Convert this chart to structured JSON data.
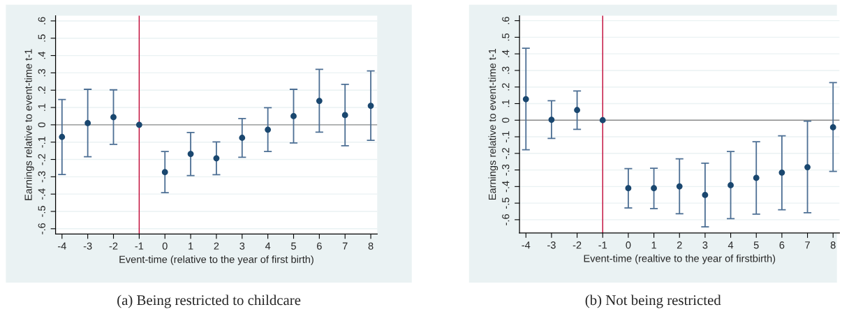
{
  "chart_data": [
    {
      "type": "scatter",
      "xlabel": "Event-time (relative to the year of first birth)",
      "ylabel": "Earnings relative to event-time t-1",
      "annotations": [
        "(a) Being restricted to childcare"
      ],
      "x": [
        -4,
        -3,
        -2,
        -1,
        0,
        1,
        2,
        3,
        4,
        5,
        6,
        7,
        8
      ],
      "series": [
        {
          "color": "#1a476f",
          "values": [
            -0.07,
            0.01,
            0.044,
            0,
            -0.273,
            -0.168,
            -0.193,
            -0.075,
            -0.028,
            0.05,
            0.138,
            0.056,
            0.11
          ],
          "errors": [
            [
              -0.287,
              0.146
            ],
            [
              -0.184,
              0.205
            ],
            [
              -0.113,
              0.202
            ],
            null,
            [
              -0.392,
              -0.154
            ],
            [
              -0.293,
              -0.044
            ],
            [
              -0.288,
              -0.099
            ],
            [
              -0.187,
              0.036
            ],
            [
              -0.154,
              0.099
            ],
            [
              -0.105,
              0.205
            ],
            [
              -0.042,
              0.32
            ],
            [
              -0.121,
              0.234
            ],
            [
              -0.09,
              0.311
            ]
          ]
        }
      ],
      "xlim": [
        -4.25,
        8.25
      ],
      "xticks": [
        -4,
        -3,
        -2,
        -1,
        0,
        1,
        2,
        3,
        4,
        5,
        6,
        7,
        8
      ],
      "ylim": [
        -0.63,
        0.63
      ],
      "yticks": [
        {
          "value": -0.6,
          "label": "-.6"
        },
        {
          "value": -0.5,
          "label": "-.5"
        },
        {
          "value": -0.4,
          "label": "-.4"
        },
        {
          "value": -0.3,
          "label": "-.3"
        },
        {
          "value": -0.2,
          "label": "-.2"
        },
        {
          "value": -0.1,
          "label": "-.1"
        },
        0,
        {
          "value": 0.1,
          "label": ".1"
        },
        {
          "value": 0.2,
          "label": ".2"
        },
        {
          "value": 0.3,
          "label": ".3"
        },
        {
          "value": 0.4,
          "label": ".4"
        },
        {
          "value": 0.5,
          "label": ".5"
        },
        {
          "value": 0.6,
          "label": ".6"
        }
      ],
      "ref_lines": [
        {
          "axis": "x",
          "value": -1,
          "color": "#c10534"
        },
        {
          "axis": "y",
          "value": 0,
          "color": "#8c8c8c"
        }
      ],
      "grid": "y",
      "marker": "circle"
    },
    {
      "type": "scatter",
      "xlabel": "Event-time (realtive to the year of firstbirth)",
      "ylabel": "Earnings relative to event-time t-1",
      "annotations": [
        "(b) Not being restricted"
      ],
      "x": [
        -4,
        -3,
        -2,
        -1,
        0,
        1,
        2,
        3,
        4,
        5,
        6,
        7,
        8
      ],
      "series": [
        {
          "color": "#1a476f",
          "values": [
            0.127,
            0.003,
            0.061,
            0,
            -0.41,
            -0.41,
            -0.399,
            -0.451,
            -0.392,
            -0.348,
            -0.316,
            -0.283,
            -0.043
          ],
          "errors": [
            [
              -0.178,
              0.434
            ],
            [
              -0.11,
              0.117
            ],
            [
              -0.055,
              0.176
            ],
            null,
            [
              -0.529,
              -0.292
            ],
            [
              -0.533,
              -0.29
            ],
            [
              -0.564,
              -0.233
            ],
            [
              -0.643,
              -0.259
            ],
            [
              -0.594,
              -0.189
            ],
            [
              -0.566,
              -0.13
            ],
            [
              -0.54,
              -0.094
            ],
            [
              -0.558,
              -0.006
            ],
            [
              -0.309,
              0.227
            ]
          ]
        }
      ],
      "xlim": [
        -4.25,
        8.25
      ],
      "xticks": [
        -4,
        -3,
        -2,
        -1,
        0,
        1,
        2,
        3,
        4,
        5,
        6,
        7,
        8
      ],
      "ylim": [
        -0.68,
        0.63
      ],
      "yticks": [
        {
          "value": -0.6,
          "label": "-.6"
        },
        {
          "value": -0.5,
          "label": "-.5"
        },
        {
          "value": -0.4,
          "label": "-.4"
        },
        {
          "value": -0.3,
          "label": "-.3"
        },
        {
          "value": -0.2,
          "label": "-.2"
        },
        {
          "value": -0.1,
          "label": "-.1"
        },
        0,
        {
          "value": 0.1,
          "label": ".1"
        },
        {
          "value": 0.2,
          "label": ".2"
        },
        {
          "value": 0.3,
          "label": ".3"
        },
        {
          "value": 0.4,
          "label": ".4"
        },
        {
          "value": 0.5,
          "label": ".5"
        },
        {
          "value": 0.6,
          "label": ".6"
        }
      ],
      "ref_lines": [
        {
          "axis": "x",
          "value": -1,
          "color": "#c10534"
        },
        {
          "axis": "y",
          "value": 0,
          "color": "#8c8c8c"
        }
      ],
      "grid": "y",
      "marker": "circle"
    }
  ]
}
